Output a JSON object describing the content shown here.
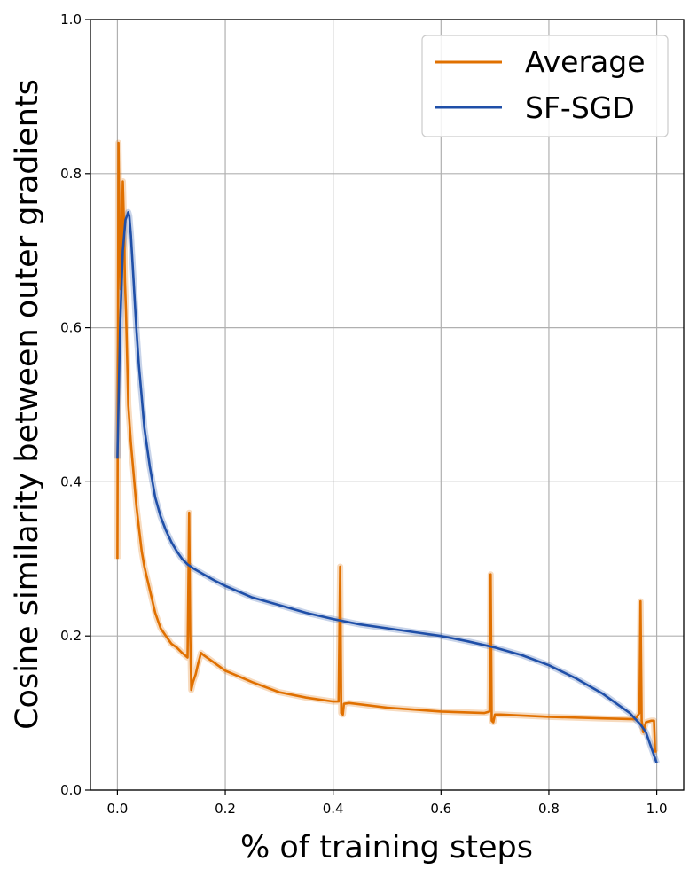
{
  "chart_data": {
    "type": "line",
    "xlabel": "% of training steps",
    "ylabel": "Cosine similarity between outer gradients",
    "xlim": [
      -0.05,
      1.05
    ],
    "ylim": [
      0.0,
      1.0
    ],
    "xticks": [
      0.0,
      0.2,
      0.4,
      0.6,
      0.8,
      1.0
    ],
    "xtick_labels": [
      "0.0",
      "0.2",
      "0.4",
      "0.6",
      "0.8",
      "1.0"
    ],
    "yticks": [
      0.0,
      0.2,
      0.4,
      0.6,
      0.8,
      1.0
    ],
    "ytick_labels": [
      "0.0",
      "0.2",
      "0.4",
      "0.6",
      "0.8",
      "1.0"
    ],
    "grid": true,
    "legend_position": "top-right",
    "series": [
      {
        "name": "Average",
        "color": "#e07000",
        "x": [
          0.0,
          0.002,
          0.004,
          0.006,
          0.008,
          0.01,
          0.012,
          0.014,
          0.016,
          0.018,
          0.02,
          0.025,
          0.03,
          0.035,
          0.04,
          0.045,
          0.05,
          0.06,
          0.07,
          0.08,
          0.09,
          0.1,
          0.11,
          0.12,
          0.13,
          0.133,
          0.135,
          0.137,
          0.14,
          0.145,
          0.15,
          0.155,
          0.16,
          0.18,
          0.2,
          0.25,
          0.3,
          0.35,
          0.4,
          0.41,
          0.413,
          0.415,
          0.418,
          0.42,
          0.43,
          0.5,
          0.6,
          0.68,
          0.69,
          0.692,
          0.694,
          0.697,
          0.7,
          0.71,
          0.8,
          0.9,
          0.96,
          0.968,
          0.97,
          0.972,
          0.975,
          0.98,
          0.99,
          0.995,
          0.997,
          1.0
        ],
        "values": [
          0.3,
          0.84,
          0.73,
          0.65,
          0.71,
          0.79,
          0.74,
          0.66,
          0.62,
          0.56,
          0.5,
          0.45,
          0.41,
          0.37,
          0.34,
          0.31,
          0.29,
          0.26,
          0.23,
          0.21,
          0.2,
          0.19,
          0.185,
          0.178,
          0.172,
          0.36,
          0.2,
          0.13,
          0.14,
          0.15,
          0.165,
          0.178,
          0.175,
          0.165,
          0.155,
          0.14,
          0.127,
          0.12,
          0.115,
          0.115,
          0.29,
          0.1,
          0.098,
          0.112,
          0.113,
          0.107,
          0.102,
          0.1,
          0.102,
          0.28,
          0.09,
          0.088,
          0.098,
          0.098,
          0.095,
          0.093,
          0.092,
          0.1,
          0.245,
          0.09,
          0.075,
          0.088,
          0.09,
          0.09,
          0.05,
          0.05
        ]
      },
      {
        "name": "SF-SGD",
        "color": "#1f4fa8",
        "x": [
          0.0,
          0.005,
          0.01,
          0.015,
          0.02,
          0.022,
          0.025,
          0.03,
          0.035,
          0.04,
          0.045,
          0.05,
          0.06,
          0.07,
          0.08,
          0.09,
          0.1,
          0.11,
          0.12,
          0.13,
          0.14,
          0.16,
          0.18,
          0.2,
          0.25,
          0.3,
          0.35,
          0.4,
          0.45,
          0.5,
          0.55,
          0.6,
          0.65,
          0.7,
          0.75,
          0.8,
          0.85,
          0.9,
          0.93,
          0.95,
          0.97,
          0.98,
          0.99,
          1.0
        ],
        "values": [
          0.43,
          0.6,
          0.7,
          0.74,
          0.75,
          0.745,
          0.72,
          0.66,
          0.6,
          0.55,
          0.51,
          0.47,
          0.42,
          0.38,
          0.355,
          0.337,
          0.322,
          0.31,
          0.3,
          0.293,
          0.288,
          0.28,
          0.272,
          0.265,
          0.25,
          0.24,
          0.23,
          0.222,
          0.215,
          0.21,
          0.205,
          0.2,
          0.193,
          0.185,
          0.175,
          0.162,
          0.145,
          0.125,
          0.11,
          0.1,
          0.085,
          0.075,
          0.055,
          0.035
        ]
      }
    ]
  }
}
